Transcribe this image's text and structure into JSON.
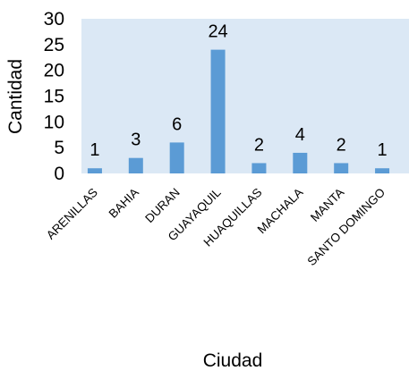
{
  "chart_data": {
    "type": "bar",
    "categories": [
      "ARENILLAS",
      "BAHIA",
      "DURAN",
      "GUAYAQUIL",
      "HUAQUILLAS",
      "MACHALA",
      "MANTA",
      "SANTO DOMINGO"
    ],
    "values": [
      1,
      3,
      6,
      24,
      2,
      4,
      2,
      1
    ],
    "data_labels": [
      "1",
      "3",
      "6",
      "24",
      "2",
      "4",
      "2",
      "1"
    ],
    "title": "",
    "xlabel": "Ciudad",
    "ylabel": "Cantidad",
    "ylim": [
      0,
      30
    ],
    "yticks": [
      "0",
      "5",
      "10",
      "15",
      "20",
      "25",
      "30"
    ],
    "grid": false,
    "legend": "none",
    "colors": {
      "bar": "#5b9bd5",
      "plot_area": "#dbe8f5"
    }
  }
}
